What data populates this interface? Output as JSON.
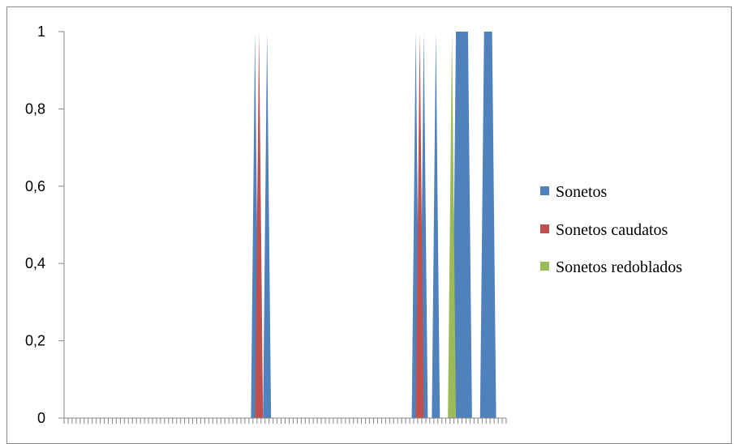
{
  "chart_data": {
    "type": "area",
    "title": "",
    "xlabel": "",
    "ylabel": "",
    "ylim": [
      0,
      1
    ],
    "yticks": [
      "0",
      "0,2",
      "0,4",
      "0,6",
      "0,8",
      "1"
    ],
    "ytick_values": [
      0,
      0.2,
      0.4,
      0.6,
      0.8,
      1
    ],
    "grid": false,
    "legend_position": "right",
    "x_count": 110,
    "series": [
      {
        "name": "Sonetos",
        "color": "#4f81bd",
        "values": [
          0,
          0,
          0,
          0,
          0,
          0,
          0,
          0,
          0,
          0,
          0,
          0,
          0,
          0,
          0,
          0,
          0,
          0,
          0,
          0,
          0,
          0,
          0,
          0,
          0,
          0,
          0,
          0,
          0,
          0,
          0,
          0,
          0,
          0,
          0,
          0,
          0,
          0,
          0,
          0,
          0,
          0,
          0,
          0,
          0,
          0,
          0,
          1,
          0,
          0,
          1,
          0,
          0,
          0,
          0,
          0,
          0,
          0,
          0,
          0,
          0,
          0,
          0,
          0,
          0,
          0,
          0,
          0,
          0,
          0,
          0,
          0,
          0,
          0,
          0,
          0,
          0,
          0,
          0,
          0,
          0,
          0,
          0,
          0,
          0,
          0,
          0,
          1,
          0,
          1,
          0,
          0,
          1,
          0,
          0,
          0,
          0,
          1,
          1,
          1,
          1,
          0,
          0,
          0,
          1,
          1,
          1,
          0,
          0,
          0
        ]
      },
      {
        "name": "Sonetos caudatos",
        "color": "#c0504d",
        "values": [
          0,
          0,
          0,
          0,
          0,
          0,
          0,
          0,
          0,
          0,
          0,
          0,
          0,
          0,
          0,
          0,
          0,
          0,
          0,
          0,
          0,
          0,
          0,
          0,
          0,
          0,
          0,
          0,
          0,
          0,
          0,
          0,
          0,
          0,
          0,
          0,
          0,
          0,
          0,
          0,
          0,
          0,
          0,
          0,
          0,
          0,
          0,
          0,
          1,
          0,
          0,
          0,
          0,
          0,
          0,
          0,
          0,
          0,
          0,
          0,
          0,
          0,
          0,
          0,
          0,
          0,
          0,
          0,
          0,
          0,
          0,
          0,
          0,
          0,
          0,
          0,
          0,
          0,
          0,
          0,
          0,
          0,
          0,
          0,
          0,
          0,
          0,
          0,
          1,
          0,
          0,
          0,
          0,
          0,
          0,
          0,
          0,
          0,
          0,
          0,
          0,
          0,
          0,
          0,
          0,
          0,
          0,
          0,
          0,
          0
        ]
      },
      {
        "name": "Sonetos redoblados",
        "color": "#9bbb59",
        "values": [
          0,
          0,
          0,
          0,
          0,
          0,
          0,
          0,
          0,
          0,
          0,
          0,
          0,
          0,
          0,
          0,
          0,
          0,
          0,
          0,
          0,
          0,
          0,
          0,
          0,
          0,
          0,
          0,
          0,
          0,
          0,
          0,
          0,
          0,
          0,
          0,
          0,
          0,
          0,
          0,
          0,
          0,
          0,
          0,
          0,
          0,
          0,
          0,
          0,
          0,
          0,
          0,
          0,
          0,
          0,
          0,
          0,
          0,
          0,
          0,
          0,
          0,
          0,
          0,
          0,
          0,
          0,
          0,
          0,
          0,
          0,
          0,
          0,
          0,
          0,
          0,
          0,
          0,
          0,
          0,
          0,
          0,
          0,
          0,
          0,
          0,
          0,
          0,
          0,
          0,
          0,
          0,
          0,
          0,
          0,
          0,
          1,
          0,
          0,
          0,
          0,
          0,
          0,
          0,
          0,
          0,
          0,
          0,
          0,
          0
        ]
      }
    ]
  }
}
